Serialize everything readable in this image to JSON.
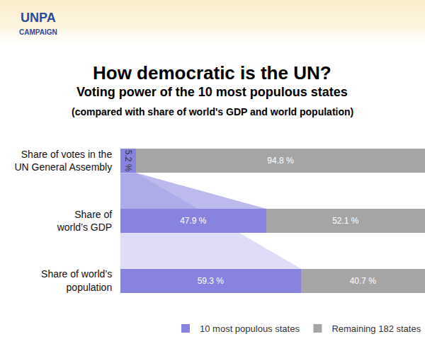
{
  "chart_data": {
    "type": "bar",
    "title": "How democratic is the UN?",
    "subtitle": [
      "Voting power of the 10 most populous states",
      "(compared with share of world's GDP and world population)"
    ],
    "annotations": [
      "UNPA",
      "CAMPAIGN"
    ],
    "categories": [
      "Share of votes in the\nUN General Assembly",
      "Share of\nworld’s GDP",
      "Share of world’s\npopulation"
    ],
    "series": [
      {
        "name": "10 most populous states",
        "color": "#8783de",
        "values": [
          5.2,
          47.9,
          59.3
        ],
        "value_labels": [
          "5.2 %",
          "47.9 %",
          "59.3 %"
        ]
      },
      {
        "name": "Remaining 182 states",
        "color": "#a5a5a5",
        "values": [
          94.8,
          52.1,
          40.7
        ],
        "value_labels": [
          "94.8 %",
          "52.1 %",
          "40.7 %"
        ]
      }
    ],
    "orientation": "horizontal",
    "stacked": true,
    "data_labels": true,
    "xlim": [
      0,
      100
    ],
    "tick_labels": false,
    "grid": false,
    "legend": "bottom right"
  }
}
